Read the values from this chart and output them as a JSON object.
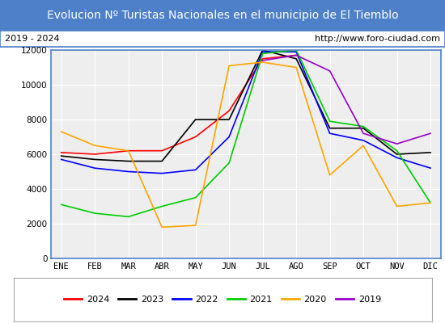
{
  "title": "Evolucion Nº Turistas Nacionales en el municipio de El Tiemblo",
  "subtitle_left": "2019 - 2024",
  "subtitle_right": "http://www.foro-ciudad.com",
  "x_labels": [
    "ENE",
    "FEB",
    "MAR",
    "ABR",
    "MAY",
    "JUN",
    "JUL",
    "AGO",
    "SEP",
    "OCT",
    "NOV",
    "DIC"
  ],
  "ylim": [
    0,
    12000
  ],
  "yticks": [
    0,
    2000,
    4000,
    6000,
    8000,
    10000,
    12000
  ],
  "series": {
    "2024": {
      "color": "#ff0000",
      "data": [
        6100,
        6000,
        6200,
        6200,
        7000,
        8500,
        11500,
        11700,
        null,
        null,
        null,
        null
      ]
    },
    "2023": {
      "color": "#000000",
      "data": [
        5900,
        5700,
        5600,
        5600,
        8000,
        8000,
        12000,
        11500,
        7500,
        7500,
        6000,
        6100
      ]
    },
    "2022": {
      "color": "#0000ff",
      "data": [
        5700,
        5200,
        5000,
        4900,
        5100,
        7000,
        11900,
        11900,
        7200,
        6800,
        5800,
        5200
      ]
    },
    "2021": {
      "color": "#00cc00",
      "data": [
        3100,
        2600,
        2400,
        3000,
        3500,
        5500,
        11800,
        12000,
        7900,
        7600,
        6200,
        3200
      ]
    },
    "2020": {
      "color": "#ffa500",
      "data": [
        7300,
        6500,
        6200,
        1800,
        1900,
        11100,
        11300,
        11000,
        4800,
        6500,
        3000,
        3200
      ]
    },
    "2019": {
      "color": "#9900cc",
      "data": [
        null,
        null,
        null,
        null,
        null,
        null,
        11400,
        11700,
        10800,
        7200,
        6600,
        7200
      ]
    }
  },
  "legend_order": [
    "2024",
    "2023",
    "2022",
    "2021",
    "2020",
    "2019"
  ],
  "title_bg_color": "#4d80c8",
  "title_text_color": "#ffffff",
  "plot_bg_color": "#eeeeee",
  "grid_color": "#ffffff",
  "border_color": "#4d80c8",
  "title_fontsize": 10,
  "tick_fontsize": 7.5
}
